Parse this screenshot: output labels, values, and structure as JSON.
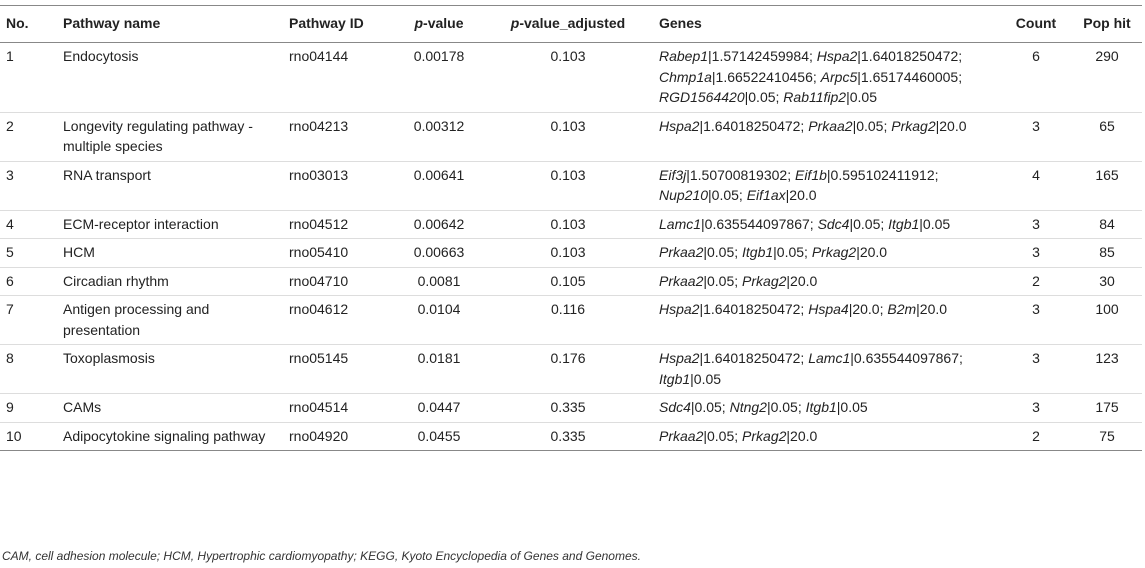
{
  "table": {
    "headers": [
      "No.",
      "Pathway name",
      "Pathway ID",
      {
        "italic": "p",
        "text": "-value"
      },
      {
        "italic": "p",
        "text": "-value_adjusted"
      },
      "Genes",
      "Count",
      "Pop hit"
    ],
    "rows": [
      {
        "no": "1",
        "name": "Endocytosis",
        "id": "rno04144",
        "p": "0.00178",
        "padj": "0.103",
        "genes": [
          {
            "gene": "Rabep1",
            "text": "|1.57142459984;"
          },
          {
            "gene": "Hspa2",
            "text": "|1.64018250472;"
          },
          {
            "gene": "Chmp1a",
            "text": "|1.66522410456;"
          },
          {
            "gene": "Arpc5",
            "text": "|1.65174460005;"
          },
          {
            "gene": "RGD1564420",
            "text": "|0.05;"
          },
          {
            "gene": "Rab11fip2",
            "text": "|0.05"
          }
        ],
        "count": "6",
        "pop": "290"
      },
      {
        "no": "2",
        "name": "Longevity regulating pathway - multiple species",
        "id": "rno04213",
        "p": "0.00312",
        "padj": "0.103",
        "genes": [
          {
            "gene": "Hspa2",
            "text": "|1.64018250472;"
          },
          {
            "gene": "Prkaa2",
            "text": "|0.05;"
          },
          {
            "gene": "Prkag2",
            "text": "|20.0"
          }
        ],
        "count": "3",
        "pop": "65"
      },
      {
        "no": "3",
        "name": "RNA transport",
        "id": "rno03013",
        "p": "0.00641",
        "padj": "0.103",
        "genes": [
          {
            "gene": "Eif3j",
            "text": "|1.50700819302;"
          },
          {
            "gene": "Eif1b",
            "text": "|0.595102411912;"
          },
          {
            "gene": "Nup210",
            "text": "|0.05;"
          },
          {
            "gene": "Eif1ax",
            "text": "|20.0"
          }
        ],
        "count": "4",
        "pop": "165"
      },
      {
        "no": "4",
        "name": "ECM-receptor interaction",
        "id": "rno04512",
        "p": "0.00642",
        "padj": "0.103",
        "genes": [
          {
            "gene": "Lamc1",
            "text": "|0.635544097867;"
          },
          {
            "gene": "Sdc4",
            "text": "|0.05;"
          },
          {
            "gene": "Itgb1",
            "text": "|0.05"
          }
        ],
        "count": "3",
        "pop": "84"
      },
      {
        "no": "5",
        "name": "HCM",
        "id": "rno05410",
        "p": "0.00663",
        "padj": "0.103",
        "genes": [
          {
            "gene": "Prkaa2",
            "text": "|0.05;"
          },
          {
            "gene": "Itgb1",
            "text": "|0.05;"
          },
          {
            "gene": "Prkag2",
            "text": "|20.0"
          }
        ],
        "count": "3",
        "pop": "85"
      },
      {
        "no": "6",
        "name": "Circadian rhythm",
        "id": "rno04710",
        "p": "0.0081",
        "padj": "0.105",
        "genes": [
          {
            "gene": "Prkaa2",
            "text": "|0.05;"
          },
          {
            "gene": "Prkag2",
            "text": "|20.0"
          }
        ],
        "count": "2",
        "pop": "30"
      },
      {
        "no": "7",
        "name": "Antigen processing and presentation",
        "id": "rno04612",
        "p": "0.0104",
        "padj": "0.116",
        "genes": [
          {
            "gene": "Hspa2",
            "text": "|1.64018250472;"
          },
          {
            "gene": "Hspa4",
            "text": "|20.0;"
          },
          {
            "gene": "B2m",
            "text": "|20.0"
          }
        ],
        "count": "3",
        "pop": "100"
      },
      {
        "no": "8",
        "name": "Toxoplasmosis",
        "id": "rno05145",
        "p": "0.0181",
        "padj": "0.176",
        "genes": [
          {
            "gene": "Hspa2",
            "text": "|1.64018250472;"
          },
          {
            "gene": "Lamc1",
            "text": "|0.635544097867;"
          },
          {
            "gene": "Itgb1",
            "text": "|0.05"
          }
        ],
        "count": "3",
        "pop": "123"
      },
      {
        "no": "9",
        "name": "CAMs",
        "id": "rno04514",
        "p": "0.0447",
        "padj": "0.335",
        "genes": [
          {
            "gene": "Sdc4",
            "text": "|0.05;"
          },
          {
            "gene": "Ntng2",
            "text": "|0.05;"
          },
          {
            "gene": "Itgb1",
            "text": "|0.05"
          }
        ],
        "count": "3",
        "pop": "175"
      },
      {
        "no": "10",
        "name": "Adipocytokine signaling pathway",
        "id": "rno04920",
        "p": "0.0455",
        "padj": "0.335",
        "genes": [
          {
            "gene": "Prkaa2",
            "text": "|0.05;"
          },
          {
            "gene": "Prkag2",
            "text": "|20.0"
          }
        ],
        "count": "2",
        "pop": "75"
      }
    ],
    "footnote": "CAM, cell adhesion molecule; HCM, Hypertrophic cardiomyopathy; KEGG, Kyoto Encyclopedia of Genes and Genomes."
  }
}
